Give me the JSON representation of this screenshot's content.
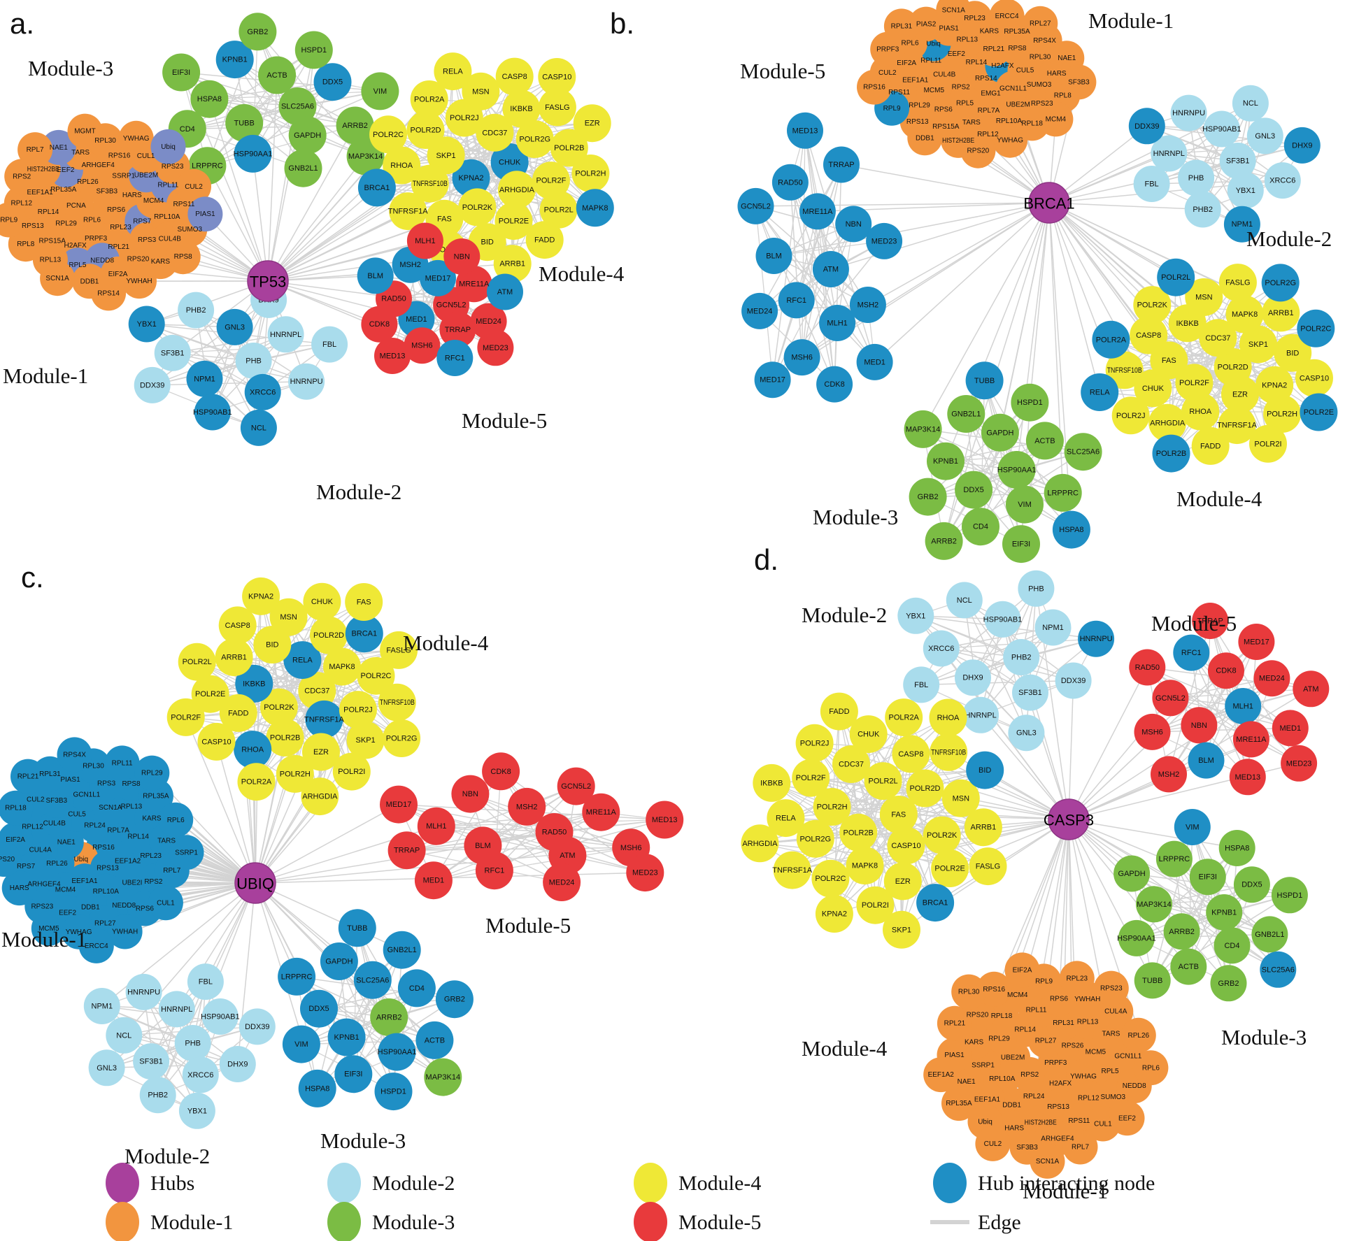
{
  "figure": {
    "type": "protein-protein interaction network figure",
    "panel_count": 4
  },
  "colors": {
    "hub": "#A8409C",
    "m1": "#F2953F",
    "m2": "#A9DCEC",
    "m3": "#7BBC44",
    "m4": "#EFE836",
    "m5": "#E83A3C",
    "hi": "#1F8FC5",
    "slate": "#7B8CC7",
    "edge": "#D3D3D3",
    "node_label": "#111111",
    "hub_stroke": "#8D3484"
  },
  "panels": [
    {
      "id": "a",
      "letter": "a.",
      "hub": "TP53",
      "modules": [
        {
          "id": "m3",
          "name": "Module-3",
          "color": "m3",
          "nodes": [
            "SLC25A6",
            "TUBB",
            "ACTB",
            "GAPDH",
            "HSPA8",
            "DDX5:hi",
            "HSP90AA1:hi",
            "KPNB1:hi",
            "ARRB2",
            "CD4",
            "HSPD1",
            "GNB2L1",
            "EIF3I",
            "VIM",
            "LRPPRC",
            "GRB2",
            "MAP3K14"
          ]
        },
        {
          "id": "m4",
          "name": "Module-4",
          "color": "m4",
          "nodes": [
            "CHUK:hi",
            "KPNA2:hi",
            "CDC37",
            "ARHGDIA",
            "SKP1",
            "POLR2G",
            "POLR2K",
            "POLR2J",
            "POLR2F",
            "TNFRSF10B",
            "IKBKB",
            "POLR2E",
            "POLR2D",
            "POLR2B",
            "FAS",
            "MSN",
            "POLR2L",
            "RHOA",
            "FASLG",
            "BID",
            "POLR2A",
            "POLR2H",
            "TNFRSF1A",
            "CASP8",
            "FADD",
            "POLR2C",
            "EZR",
            "POLR2I",
            "RELA",
            "MAPK8:hi",
            "BRCA1:hi",
            "CASP10",
            "ARRB1"
          ]
        },
        {
          "id": "m1",
          "name": "Module-1",
          "color": "m1",
          "nodes": [
            "RPS6",
            "RPL6",
            "SF3B3",
            "RPL23",
            "PCNA",
            "HARS",
            "PRPF3",
            "RPL26",
            "RPS7:slate",
            "RPL29",
            "SSRP1",
            "RPL21",
            "RPL35A",
            "MCM4",
            "H2AFX",
            "ARHGEF4",
            "RPS3",
            "RPL14",
            "UBE2M:slate",
            "NEDD8:slate",
            "EEF2:slate",
            "RPL10A",
            "RPS15A",
            "RPS16",
            "RPS20",
            "EEF1A1",
            "RPL11:slate",
            "RPL5:slate",
            "TARS",
            "CUL4B",
            "RPS13",
            "CUL1",
            "EIF2A",
            "HIST2H2BE",
            "RPS11",
            "RPL13",
            "RPL30",
            "KARS",
            "RPL12",
            "RPS23",
            "DDB1",
            "NAE1:slate",
            "SUMO3",
            "RPL8",
            "YWHAG",
            "YWHAH",
            "RPS2",
            "CUL2",
            "SCN1A",
            "MGMT",
            "RPS8",
            "RPL9",
            "Ubiq:slate",
            "RPS14",
            "RPL7",
            "PIAS1:slate"
          ]
        },
        {
          "id": "m2",
          "name": "Module-2",
          "color": "m2",
          "nodes": [
            "PHB",
            "NPM1:hi",
            "GNL3:hi",
            "XRCC6:hi",
            "SF3B1",
            "HNRNPL",
            "HSP90AB1:hi",
            "PHB2",
            "HNRNPU",
            "DDX39",
            "DHX9",
            "NCL:hi",
            "YBX1:hi",
            "FBL"
          ]
        },
        {
          "id": "m5",
          "name": "Module-5",
          "color": "m5",
          "nodes": [
            "GCN5L2",
            "MED1:hi",
            "MED17:hi",
            "TRRAP",
            "RAD50",
            "MRE11A",
            "MSH6",
            "MSH2:hi",
            "MED24",
            "CDK8",
            "NBN",
            "RFC1:hi",
            "BLM:hi",
            "ATM:hi",
            "MED13",
            "MLH1",
            "MED23"
          ]
        }
      ]
    },
    {
      "id": "b",
      "letter": "b.",
      "hub": "BRCA1",
      "modules": [
        {
          "id": "m1",
          "name": "Module-1",
          "color": "m1",
          "nodes": [
            "RPS14",
            "RPS2",
            "RPL14",
            "EMG1",
            "CUL4B",
            "H2AFX:hi",
            "RPL5",
            "EEF2",
            "GCN1L1",
            "MCM5",
            "RPL21",
            "RPL7A",
            "RPL11",
            "CUL5",
            "RPS6",
            "RPL13",
            "UBE2M",
            "EEF1A1",
            "RPS8",
            "TARS",
            "Ubiq:hi",
            "SUMO3",
            "RPL29",
            "KARS",
            "RPL10A",
            "EIF2A",
            "RPL30",
            "RPS15A",
            "PIAS1",
            "RPS23",
            "RPS11",
            "RPL35A",
            "RPL12",
            "RPL6",
            "HARS",
            "RPS13",
            "RPL23",
            "RPL18",
            "CUL2",
            "RPS4X",
            "HIST2H2BE",
            "PIAS2",
            "RPL8",
            "RPL9:hi",
            "ERCC4",
            "YWHAG",
            "PRPF3",
            "NAE1",
            "DDB1",
            "SCN1A",
            "MCM4",
            "RPS16",
            "RPL27",
            "RPS20",
            "RPL31",
            "SF3B3"
          ]
        },
        {
          "id": "m5",
          "name": "Module-5",
          "color": "hi",
          "nodes": [
            "ATM",
            "RFC1",
            "MRE11A",
            "MLH1",
            "BLM",
            "NBN",
            "MSH6",
            "RAD50",
            "MSH2",
            "MED24",
            "TRRAP",
            "CDK8",
            "GCN5L2",
            "MED23",
            "MED17",
            "MED13",
            "MED1"
          ]
        },
        {
          "id": "m2",
          "name": "Module-2",
          "color": "m2",
          "nodes": [
            "SF3B1",
            "PHB",
            "HSP90AB1",
            "YBX1",
            "HNRNPL",
            "GNL3",
            "PHB2",
            "HNRNPU",
            "XRCC6",
            "FBL",
            "NCL",
            "NPM1:hi",
            "DDX39:hi",
            "DHX9:hi"
          ]
        },
        {
          "id": "m4",
          "name": "Module-4",
          "color": "m4",
          "nodes": [
            "POLR2D",
            "POLR2F",
            "CDC37",
            "EZR",
            "FAS",
            "SKP1",
            "RHOA",
            "IKBKB",
            "KPNA2",
            "CHUK",
            "MAPK8",
            "TNFRSF1A",
            "CASP8",
            "BID",
            "ARHGDIA",
            "MSN",
            "POLR2H",
            "TNFRSF10B",
            "ARRB1",
            "FADD",
            "POLR2K",
            "CASP10",
            "POLR2J",
            "FASLG",
            "POLR2I",
            "POLR2A:hi",
            "POLR2C:hi",
            "POLR2B:hi",
            "POLR2L:hi",
            "POLR2E:hi",
            "RELA:hi",
            "POLR2G:hi"
          ]
        },
        {
          "id": "m3",
          "name": "Module-3",
          "color": "m3",
          "nodes": [
            "HSP90AA1",
            "DDX5",
            "GAPDH",
            "VIM",
            "KPNB1",
            "ACTB",
            "CD4",
            "GNB2L1",
            "LRPPRC",
            "GRB2",
            "HSPD1",
            "EIF3I",
            "MAP3K14",
            "SLC25A6",
            "ARRB2",
            "TUBB:hi",
            "HSPA8:hi"
          ]
        }
      ]
    },
    {
      "id": "c",
      "letter": "c.",
      "hub": "UBIQ",
      "modules": [
        {
          "id": "m4",
          "name": "Module-4",
          "color": "m4",
          "nodes": [
            "CDC37",
            "POLR2K",
            "RELA:hi",
            "TNFRSF1A:hi",
            "IKBKB:hi",
            "MAPK8",
            "POLR2B",
            "BID",
            "POLR2J",
            "FADD",
            "POLR2D",
            "EZR",
            "ARRB1",
            "POLR2C",
            "RHOA:hi",
            "MSN",
            "SKP1",
            "POLR2E",
            "BRCA1:hi",
            "POLR2H",
            "CASP8",
            "TNFRSF10B",
            "CASP10",
            "CHUK",
            "POLR2I",
            "POLR2L",
            "FASLG",
            "POLR2A",
            "KPNA2",
            "POLR2G",
            "POLR2F",
            "FAS",
            "ARHGDIA"
          ]
        },
        {
          "id": "m1",
          "name": "Module-1",
          "color": "hi",
          "nodes": [
            "RPS16",
            "Ubiq:m1",
            "RPL24",
            "RPS13",
            "NAE1",
            "RPL7A",
            "EEF1A1",
            "CUL5",
            "EEF1A2",
            "RPL26",
            "SCN1A",
            "RPL10A",
            "CUL4B",
            "RPL14",
            "MCM4",
            "GCN1L1",
            "UBE2I",
            "CUL4A",
            "RPL13",
            "DDB1",
            "SF3B3",
            "RPL23",
            "ARHGEF4",
            "RPS3",
            "NEDD8",
            "RPL12",
            "KARS",
            "EEF2",
            "PIAS1",
            "RPS2",
            "RPS7",
            "RPS8",
            "RPL27",
            "CUL2",
            "TARS",
            "RPS23",
            "RPL30",
            "RPS6",
            "EIF2A",
            "RPL35A",
            "YWHAG",
            "RPL31",
            "RPL7",
            "HARS",
            "RPL11",
            "YWHAH",
            "RPL18",
            "RPL6",
            "MCM5",
            "RPS4X",
            "CUL1",
            "RPS20",
            "RPL29",
            "ERCC4",
            "RPL21",
            "SSRP1"
          ]
        },
        {
          "id": "m2",
          "name": "Module-2",
          "color": "m2",
          "nodes": [
            "PHB",
            "SF3B1",
            "HNRNPL",
            "XRCC6",
            "NCL",
            "HSP90AB1",
            "PHB2",
            "HNRNPU",
            "DHX9",
            "GNL3",
            "FBL",
            "YBX1",
            "NPM1",
            "DDX39"
          ]
        },
        {
          "id": "m3",
          "name": "Module-3",
          "color": "hi",
          "nodes": [
            "ARRB2:m3",
            "KPNB1",
            "SLC25A6",
            "HSP90AA1",
            "DDX5",
            "CD4",
            "EIF3I",
            "GAPDH",
            "ACTB",
            "VIM",
            "GNB2L1",
            "HSPD1",
            "LRPPRC",
            "GRB2",
            "HSPA8",
            "TUBB",
            "MAP3K14:m3"
          ]
        },
        {
          "id": "m5",
          "name": "Module-5",
          "color": "m5",
          "nodes": [
            "RAD50",
            "BLM",
            "MSH2",
            "ATM",
            "MLH1",
            "MRE11A",
            "RFC1",
            "NBN",
            "MSH6",
            "TRRAP",
            "GCN5L2",
            "MED24",
            "MED17",
            "MED13",
            "MED1",
            "CDK8",
            "MED23"
          ]
        }
      ]
    },
    {
      "id": "d",
      "letter": "d.",
      "hub": "CASP3",
      "modules": [
        {
          "id": "m2",
          "name": "Module-2",
          "color": "m2",
          "nodes": [
            "PHB2",
            "DHX9",
            "HSP90AB1",
            "SF3B1",
            "XRCC6",
            "NPM1",
            "HNRNPL",
            "NCL",
            "DDX39",
            "FBL",
            "PHB",
            "GNL3",
            "YBX1",
            "HNRNPU:hi"
          ]
        },
        {
          "id": "m5",
          "name": "Module-5",
          "color": "m5",
          "nodes": [
            "MLH1:hi",
            "NBN",
            "CDK8",
            "MRE11A",
            "GCN5L2",
            "MED24",
            "BLM:hi",
            "RFC1:hi",
            "MED1",
            "MSH6",
            "MED17",
            "MED13",
            "RAD50",
            "ATM",
            "MSH2",
            "TRRAP",
            "MED23"
          ]
        },
        {
          "id": "m4",
          "name": "Module-4",
          "color": "m4",
          "nodes": [
            "FAS",
            "POLR2B",
            "POLR2L",
            "CASP10",
            "POLR2H",
            "POLR2D",
            "MAPK8",
            "CDC37",
            "POLR2K",
            "POLR2G",
            "CASP8",
            "EZR",
            "POLR2F",
            "MSN",
            "POLR2C",
            "CHUK",
            "POLR2E",
            "RELA",
            "TNFRSF10B",
            "POLR2I",
            "POLR2J",
            "ARRB1",
            "TNFRSF1A",
            "POLR2A",
            "BRCA1:hi",
            "IKBKB",
            "BID:hi",
            "KPNA2",
            "FADD",
            "FASLG",
            "ARHGDIA",
            "RHOA",
            "SKP1"
          ]
        },
        {
          "id": "m3",
          "name": "Module-3",
          "color": "m3",
          "nodes": [
            "KPNB1",
            "ARRB2",
            "EIF3I",
            "CD4",
            "MAP3K14",
            "DDX5",
            "ACTB",
            "LRPPRC",
            "GNB2L1",
            "HSP90AA1",
            "HSPA8",
            "GRB2",
            "GAPDH",
            "HSPD1",
            "TUBB",
            "VIM:hi",
            "SLC25A6:hi"
          ]
        },
        {
          "id": "m1",
          "name": "Module-1",
          "color": "m1",
          "nodes": [
            "PRPF3",
            "RPS2",
            "RPL27",
            "H2AFX",
            "UBE2M",
            "RPS26",
            "RPL24",
            "RPL14",
            "YWHAG",
            "RPL10A",
            "RPL31",
            "RPS13",
            "RPL29",
            "MCM5",
            "DDB1",
            "RPL11",
            "RPL12",
            "SSRP1",
            "RPL13",
            "HIST2H2BE",
            "RPL18",
            "RPL5",
            "EEF1A1",
            "RPS6",
            "RPS11",
            "KARS",
            "TARS",
            "HARS",
            "MCM4",
            "SUMO3",
            "NAE1",
            "YWHAH",
            "ARHGEF4",
            "RPS20",
            "GCN1L1",
            "Ubiq",
            "RPL9",
            "CUL1",
            "PIAS1",
            "CUL4A",
            "SF3B3",
            "RPS16",
            "NEDD8",
            "RPL35A",
            "RPL23",
            "RPL7",
            "RPL21",
            "RPL26",
            "CUL2",
            "EIF2A",
            "EEF2",
            "EEF1A2",
            "RPS23",
            "SCN1A",
            "RPL30",
            "RPL6"
          ]
        }
      ]
    }
  ],
  "legend": {
    "items": [
      {
        "id": "hubs",
        "label": "Hubs",
        "color": "hub",
        "shape": "ellipse"
      },
      {
        "id": "module-1",
        "label": "Module-1",
        "color": "m1",
        "shape": "ellipse"
      },
      {
        "id": "module-2",
        "label": "Module-2",
        "color": "m2",
        "shape": "ellipse"
      },
      {
        "id": "module-3",
        "label": "Module-3",
        "color": "m3",
        "shape": "ellipse"
      },
      {
        "id": "module-4",
        "label": "Module-4",
        "color": "m4",
        "shape": "ellipse"
      },
      {
        "id": "module-5",
        "label": "Module-5",
        "color": "m5",
        "shape": "ellipse"
      },
      {
        "id": "hub-interacting-node",
        "label": "Hub interacting node",
        "color": "hi",
        "shape": "ellipse"
      },
      {
        "id": "edge",
        "label": "Edge",
        "color": "edge",
        "shape": "line"
      }
    ]
  }
}
